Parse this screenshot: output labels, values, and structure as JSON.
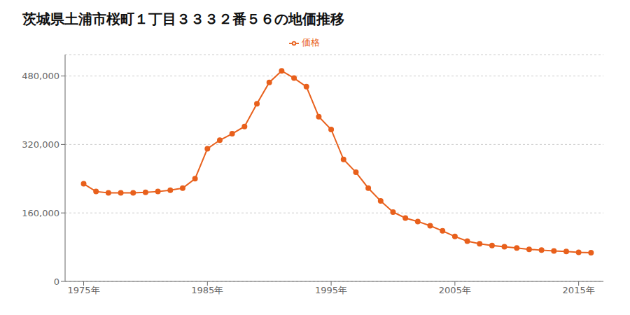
{
  "chart_data": {
    "type": "line",
    "title": "茨城県土浦市桜町１丁目３３３２番５６の地価推移",
    "x": [
      1975,
      1976,
      1977,
      1978,
      1979,
      1980,
      1981,
      1982,
      1983,
      1984,
      1985,
      1986,
      1987,
      1988,
      1989,
      1990,
      1991,
      1992,
      1993,
      1994,
      1995,
      1996,
      1997,
      1998,
      1999,
      2000,
      2001,
      2002,
      2003,
      2004,
      2005,
      2006,
      2007,
      2008,
      2009,
      2010,
      2011,
      2012,
      2013,
      2014,
      2015,
      2016
    ],
    "series": [
      {
        "name": "価格",
        "color": "#e8601c",
        "marker": "circle",
        "values": [
          228000,
          210000,
          207000,
          207000,
          207000,
          208000,
          210000,
          213000,
          218000,
          240000,
          310000,
          330000,
          345000,
          362000,
          415000,
          465000,
          492000,
          475000,
          455000,
          385000,
          355000,
          285000,
          255000,
          218000,
          188000,
          162000,
          148000,
          140000,
          130000,
          118000,
          105000,
          94000,
          88000,
          84000,
          81000,
          78000,
          75000,
          73000,
          71000,
          70000,
          68000,
          67000
        ]
      }
    ],
    "xlim": [
      1973.5,
      2017
    ],
    "xticks": [
      {
        "value": 1975,
        "label": "1975年"
      },
      {
        "value": 1985,
        "label": "1985年"
      },
      {
        "value": 1995,
        "label": "1995年"
      },
      {
        "value": 2005,
        "label": "2005年"
      },
      {
        "value": 2015,
        "label": "2015年"
      }
    ],
    "ylim": [
      0,
      530000
    ],
    "yticks": [
      0,
      {
        "value": 160000,
        "label": "160,000"
      },
      {
        "value": 320000,
        "label": "320,000"
      },
      {
        "value": 480000,
        "label": "480,000"
      }
    ],
    "grid": "y",
    "legend": "top"
  }
}
